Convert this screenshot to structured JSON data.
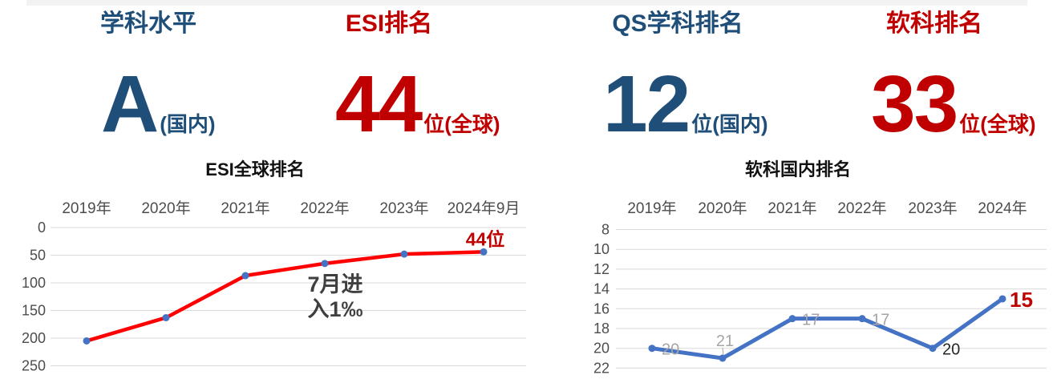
{
  "cards": [
    {
      "title": "学科水平",
      "value": "A",
      "suffix": "(国内)",
      "color": "#1f4e79"
    },
    {
      "title": "ESI排名",
      "value": "44",
      "suffix": "位(全球)",
      "color": "#c00000"
    },
    {
      "title": "QS学科排名",
      "value": "12",
      "suffix": "位(国内)",
      "color": "#1f4e79"
    },
    {
      "title": "软科排名",
      "value": "33",
      "suffix": "位(全球)",
      "color": "#c00000"
    }
  ],
  "colors": {
    "dark_blue": "#1f4e79",
    "dark_red": "#c00000",
    "esi_line": "#ff0000",
    "marker_blue": "#4472c4",
    "ruanke_line": "#4472c4",
    "gridline": "#d9d9d9",
    "axis_label": "#4d4d4d",
    "gray_label": "#a6a6a6"
  },
  "chart_data": [
    {
      "type": "line",
      "title": "ESI全球排名",
      "categories": [
        "2019年",
        "2020年",
        "2021年",
        "2022年",
        "2023年",
        "2024年9月"
      ],
      "series": [
        {
          "name": "ESI全球排名",
          "values": [
            205,
            163,
            87,
            65,
            48,
            44
          ]
        }
      ],
      "y_ticks": [
        0,
        50,
        100,
        150,
        200,
        250
      ],
      "ylim": [
        0,
        250
      ],
      "y_axis_reversed": true,
      "grid": true,
      "legend": false,
      "xlabel": "",
      "ylabel": "",
      "line_color": "#ff0000",
      "marker_color": "#4472c4",
      "annotations": [
        {
          "text": "44位",
          "color": "#c00000",
          "attach": "last-point"
        },
        {
          "text": "7月进\n入1‰",
          "color": "#3f3f3f",
          "attach": "center"
        }
      ]
    },
    {
      "type": "line",
      "title": "软科国内排名",
      "categories": [
        "2019年",
        "2020年",
        "2021年",
        "2022年",
        "2023年",
        "2024年"
      ],
      "series": [
        {
          "name": "软科国内排名",
          "values": [
            20,
            21,
            17,
            17,
            20,
            15
          ]
        }
      ],
      "y_ticks": [
        8,
        10,
        12,
        14,
        16,
        18,
        20,
        22
      ],
      "ylim": [
        8,
        22
      ],
      "y_axis_reversed": true,
      "grid": true,
      "legend": false,
      "xlabel": "",
      "ylabel": "",
      "line_color": "#4472c4",
      "marker_color": "#4472c4",
      "data_labels": [
        {
          "text": "20",
          "color": "#a6a6a6",
          "placement": "right",
          "emphasis": false
        },
        {
          "text": "21",
          "color": "#a6a6a6",
          "placement": "above",
          "leader": true,
          "emphasis": false
        },
        {
          "text": "17",
          "color": "#a6a6a6",
          "placement": "right",
          "emphasis": false
        },
        {
          "text": "17",
          "color": "#a6a6a6",
          "placement": "right",
          "emphasis": false
        },
        {
          "text": "20",
          "color": "#262626",
          "placement": "right",
          "emphasis": false
        },
        {
          "text": "15",
          "color": "#c00000",
          "placement": "right",
          "emphasis": true
        }
      ]
    }
  ]
}
